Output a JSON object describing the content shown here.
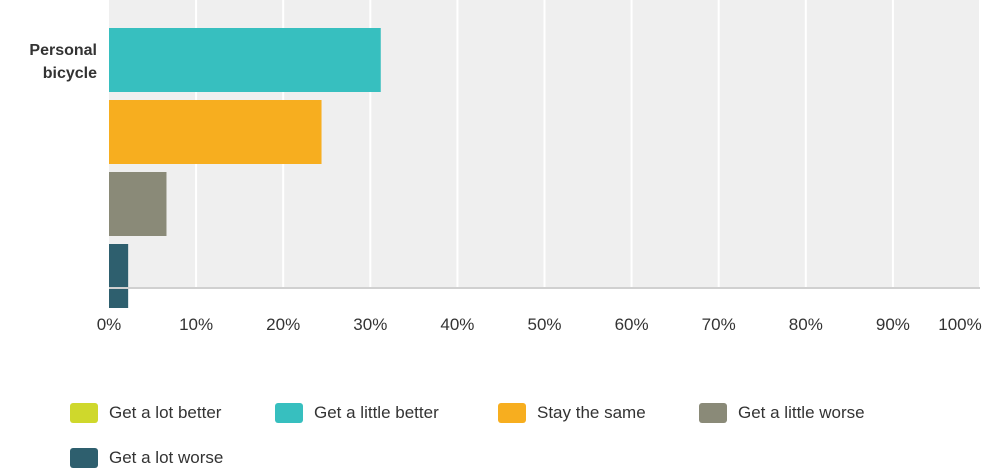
{
  "chart_data": {
    "type": "bar",
    "orientation": "horizontal",
    "categories": [
      "Personal bicycle"
    ],
    "series": [
      {
        "name": "Get a lot better",
        "values": [
          0
        ],
        "color": "#cfd82c"
      },
      {
        "name": "Get a little better",
        "values": [
          31.2
        ],
        "color": "#37bfbf"
      },
      {
        "name": "Stay the same",
        "values": [
          24.4
        ],
        "color": "#f7ae1f"
      },
      {
        "name": "Get a little worse",
        "values": [
          6.6
        ],
        "color": "#8a8a78"
      },
      {
        "name": "Get a lot worse",
        "values": [
          2.2
        ],
        "color": "#2e5f6e"
      }
    ],
    "xticks": [
      "0%",
      "10%",
      "20%",
      "30%",
      "40%",
      "50%",
      "60%",
      "70%",
      "80%",
      "90%",
      "100%"
    ],
    "xlim": [
      0,
      100
    ],
    "grid": true,
    "legend_position": "bottom",
    "plot_background": "#efefef",
    "title": "",
    "xlabel": "",
    "ylabel": ""
  }
}
